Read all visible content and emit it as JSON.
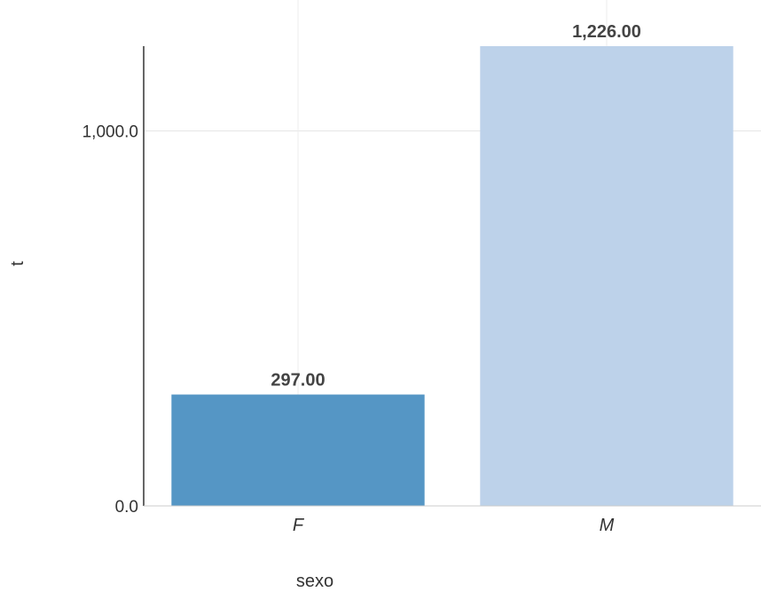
{
  "chart_data": {
    "type": "bar",
    "xlabel": "sexo",
    "ylabel": "t",
    "ylim": [
      0,
      1226
    ],
    "yticks": [
      0,
      1000
    ],
    "ytick_labels": [
      "0.0",
      "1,000.0"
    ],
    "categories": [
      "F",
      "M"
    ],
    "values": [
      297,
      1226
    ],
    "value_labels": [
      "297.00",
      "1,226.00"
    ],
    "colors": [
      "#5596c5",
      "#bdd2ea"
    ],
    "grid": true,
    "legend": "none"
  }
}
